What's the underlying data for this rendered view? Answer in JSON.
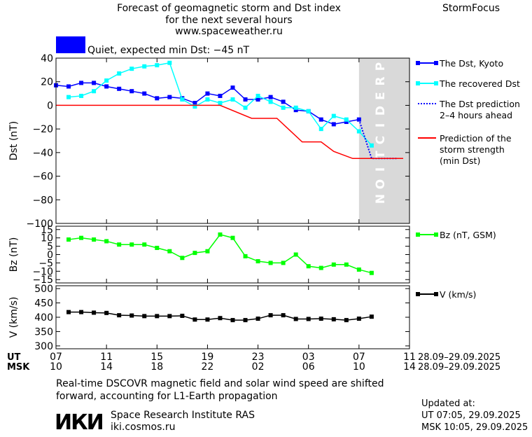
{
  "header": {
    "title_line1": "Forecast of geomagnetic storm and Dst index",
    "title_line2": "for the next several hours",
    "url": "www.spaceweather.ru",
    "brand": "StormFocus"
  },
  "status": {
    "text": "Quiet, expected min Dst: −45 nT",
    "color": "#0000ff"
  },
  "prediction_label": "PREDICTION",
  "footer": {
    "note_line1": "Real-time DSCOVR magnetic field and solar wind speed are shifted",
    "note_line2": "forward, accounting for L1-Earth propagation",
    "logo": "ИКИ",
    "institute": "Space Research Institute RAS",
    "site": "iki.cosmos.ru",
    "updated_label": "Updated at:",
    "updated_ut": "UT   07:05, 29.09.2025",
    "updated_msk": "MSK 10:05, 29.09.2025"
  },
  "chart_data": [
    {
      "type": "line",
      "ylabel": "Dst (nT)",
      "ylim": [
        -100,
        40
      ],
      "yticks": [
        "40",
        "20",
        "0",
        "−20",
        "−40",
        "−60",
        "−80",
        "−100"
      ],
      "ytick_values": [
        40,
        20,
        0,
        -20,
        -40,
        -60,
        -80,
        -100
      ],
      "xlim": [
        0,
        28
      ],
      "prediction_region": [
        24,
        28
      ],
      "series": [
        {
          "name": "The Dst, Kyoto",
          "color": "#0000ff",
          "marker": "square",
          "x": [
            0,
            1,
            2,
            3,
            4,
            5,
            6,
            7,
            8,
            9,
            10,
            11,
            12,
            13,
            14,
            15,
            16,
            17,
            18,
            19,
            20,
            21,
            22,
            23,
            24
          ],
          "y": [
            17,
            16,
            19,
            19,
            16,
            14,
            12,
            10,
            6,
            7,
            6,
            2,
            10,
            8,
            15,
            5,
            5,
            7,
            3,
            -4,
            -5,
            -12,
            -16,
            -14,
            -12
          ]
        },
        {
          "name": "The recovered Dst",
          "color": "#00ffff",
          "marker": "square",
          "x": [
            1,
            2,
            3,
            4,
            5,
            6,
            7,
            8,
            9,
            10,
            11,
            12,
            13,
            14,
            15,
            16,
            17,
            18,
            19,
            20,
            21,
            22,
            23,
            24,
            25
          ],
          "y": [
            7,
            8,
            12,
            21,
            27,
            31,
            33,
            34,
            36,
            5,
            -1,
            5,
            2,
            5,
            -2,
            8,
            3,
            -2,
            -2,
            -5,
            -20,
            -9,
            -12,
            -22,
            -34
          ]
        },
        {
          "name": "The Dst prediction\n2–4 hours ahead",
          "color": "#0000ff",
          "dash": true,
          "x": [
            24,
            25,
            26,
            27
          ],
          "y": [
            -12,
            -45,
            -45,
            -45
          ]
        },
        {
          "name": "Prediction of the\nstorm strength\n(min Dst)",
          "color": "#ff0000",
          "x": [
            0,
            13,
            15.5,
            17,
            17.5,
            18.5,
            19.5,
            21,
            22,
            23.5,
            27.5
          ],
          "y": [
            0,
            0,
            -11,
            -11,
            -11,
            -21,
            -31,
            -31,
            -39,
            -45,
            -45
          ]
        }
      ]
    },
    {
      "type": "line",
      "ylabel": "Bz (nT)",
      "ylim": [
        -17,
        17
      ],
      "yticks": [
        "15",
        "10",
        "5",
        "0",
        "−5",
        "−10",
        "−15"
      ],
      "ytick_values": [
        15,
        10,
        5,
        0,
        -5,
        -10,
        -15
      ],
      "xlim": [
        0,
        28
      ],
      "series": [
        {
          "name": "Bz (nT, GSM)",
          "color": "#00ff00",
          "marker": "square",
          "x": [
            1,
            2,
            3,
            4,
            5,
            6,
            7,
            8,
            9,
            10,
            11,
            12,
            13,
            14,
            15,
            16,
            17,
            18,
            19,
            20,
            21,
            22,
            23,
            24,
            25
          ],
          "y": [
            9,
            10,
            9,
            8,
            6,
            6,
            6,
            4,
            2,
            -2,
            1,
            2,
            12,
            10,
            -1,
            -4,
            -5,
            -5,
            0,
            -7,
            -8,
            -6,
            -6,
            -9,
            -11
          ]
        }
      ]
    },
    {
      "type": "line",
      "ylabel": "V (km/s)",
      "ylim": [
        290,
        510
      ],
      "yticks": [
        "500",
        "450",
        "400",
        "350",
        "300"
      ],
      "ytick_values": [
        500,
        450,
        400,
        350,
        300
      ],
      "xlim": [
        0,
        28
      ],
      "series": [
        {
          "name": "V (km/s)",
          "color": "#000000",
          "marker": "square",
          "x": [
            1,
            2,
            3,
            4,
            5,
            6,
            7,
            8,
            9,
            10,
            11,
            12,
            13,
            14,
            15,
            16,
            17,
            18,
            19,
            20,
            21,
            22,
            23,
            24,
            25
          ],
          "y": [
            418,
            418,
            416,
            415,
            407,
            406,
            404,
            404,
            404,
            405,
            392,
            392,
            397,
            390,
            390,
            395,
            407,
            407,
            394,
            394,
            395,
            393,
            390,
            395,
            402
          ]
        }
      ]
    }
  ],
  "x_axis": {
    "ut_label": "UT",
    "msk_label": "MSK",
    "ut_ticks": [
      "07",
      "11",
      "15",
      "19",
      "23",
      "03",
      "07",
      "11"
    ],
    "msk_ticks": [
      "10",
      "14",
      "18",
      "22",
      "02",
      "06",
      "10",
      "14"
    ],
    "tick_hours": [
      0,
      4,
      8,
      12,
      16,
      20,
      24,
      28
    ],
    "ut_dates": "28.09–29.09.2025",
    "msk_dates": "28.09–29.09.2025"
  }
}
